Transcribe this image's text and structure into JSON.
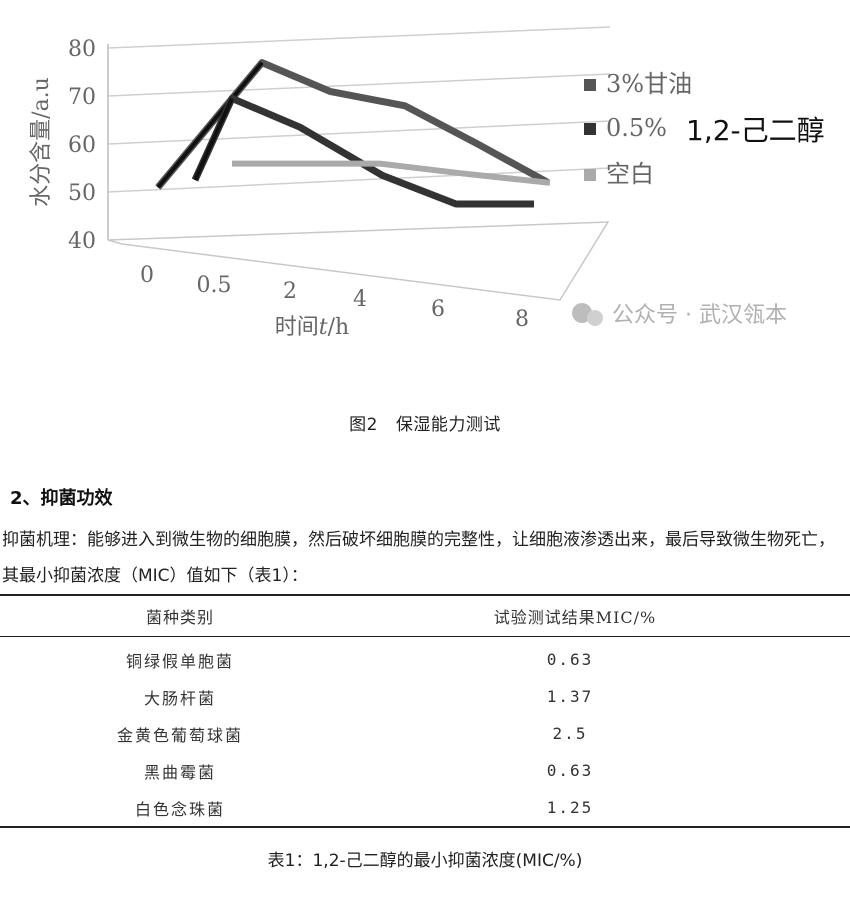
{
  "figure": {
    "chart_data": {
      "type": "line",
      "ylabel": "水分含量/a.u",
      "xlabel_prefix": "时间",
      "xlabel_var": "t",
      "xlabel_unit": "/h",
      "categories": [
        "0",
        "0.5",
        "2",
        "4",
        "6",
        "8"
      ],
      "yticks": [
        "40",
        "50",
        "60",
        "70",
        "80"
      ],
      "ylim": [
        40,
        80
      ],
      "series": [
        {
          "name": "3%甘油",
          "color": "#555555",
          "values": [
            52,
            78,
            72,
            69,
            61,
            53
          ]
        },
        {
          "name": "0.5%",
          "name_extra": "1,2-己二醇",
          "color": "#333333",
          "values": [
            55,
            72,
            66,
            56,
            50,
            50
          ]
        },
        {
          "name": "空白",
          "color": "#aaaaaa",
          "values": [
            null,
            58,
            58,
            58,
            56,
            54
          ]
        }
      ],
      "legend": "right",
      "grid": true
    },
    "watermark": "公众号 · 武汉瓴本",
    "caption_num": "图2",
    "caption_text": "保湿能力测试"
  },
  "section": {
    "heading": "2、抑菌功效",
    "paragraph": "抑菌机理：能够进入到微生物的细胞膜，然后破坏细胞膜的完整性，让细胞液渗透出来，最后导致微生物死亡，其最小抑菌浓度（MIC）值如下（表1）："
  },
  "table": {
    "headers": [
      "菌种类别",
      "试验测试结果MIC/%"
    ],
    "rows": [
      [
        "铜绿假单胞菌",
        "0.63"
      ],
      [
        "大肠杆菌",
        "1.37"
      ],
      [
        "金黄色葡萄球菌",
        "2.5"
      ],
      [
        "黑曲霉菌",
        "0.63"
      ],
      [
        "白色念珠菌",
        "1.25"
      ]
    ],
    "caption": "表1：1,2-己二醇的最小抑菌浓度(MIC/%)"
  }
}
